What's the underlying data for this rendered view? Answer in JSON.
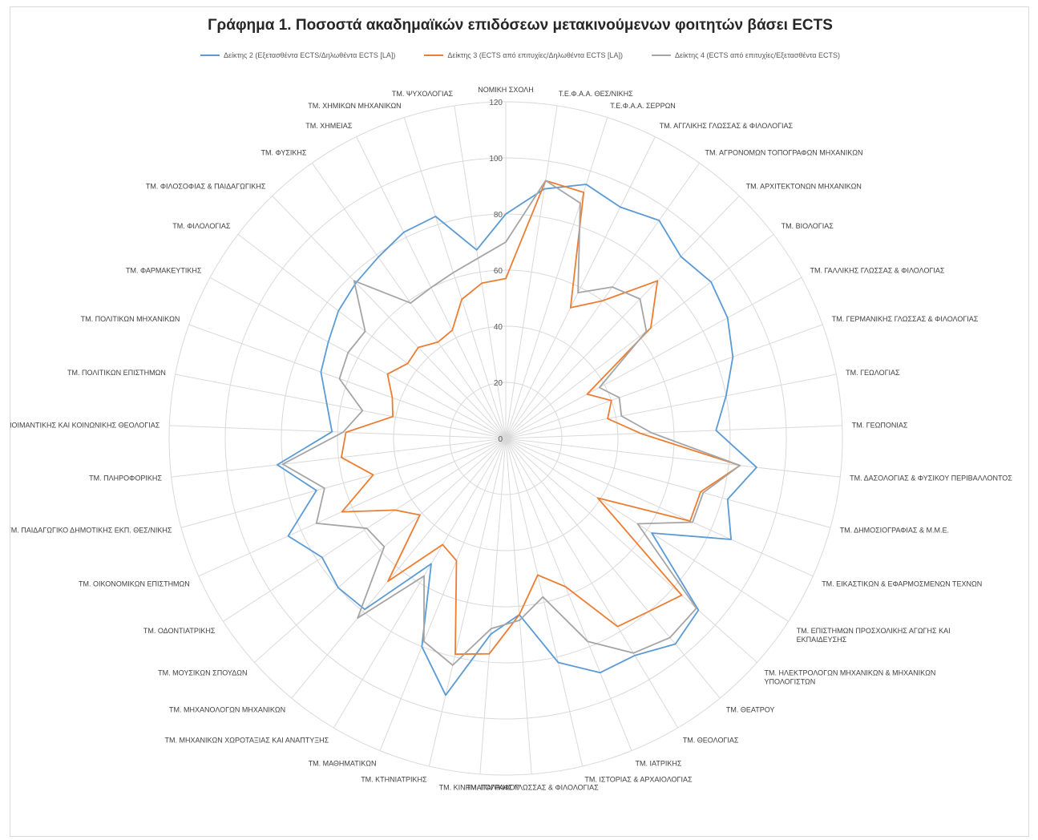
{
  "chart_data": {
    "type": "radar",
    "title": "Γράφημα 1. Ποσοστά ακαδημαϊκών επιδόσεων μετακινούμενων φοιτητών βάσει ECTS",
    "rmin": 0,
    "rmax": 120,
    "ticks": [
      0,
      20,
      40,
      60,
      80,
      100,
      120
    ],
    "tick_labels": [
      "0",
      "20",
      "40",
      "60",
      "80",
      "100",
      "120"
    ],
    "legend_position": "top",
    "grid": true,
    "categories": [
      [
        "ΝΟΜΙΚΗ ΣΧΟΛΗ"
      ],
      [
        "Τ.Ε.Φ.Α.Α. ΘΕΣ/ΝΙΚΗΣ"
      ],
      [
        "Τ.Ε.Φ.Α.Α. ΣΕΡΡΩΝ"
      ],
      [
        "ΤΜ. ΑΓΓΛΙΚΗΣ ΓΛΩΣΣΑΣ & ΦΙΛΟΛΟΓΙΑΣ"
      ],
      [
        "ΤΜ. ΑΓΡΟΝΟΜΩΝ ΤΟΠΟΓΡΑΦΩΝ ΜΗΧΑΝΙΚΩΝ"
      ],
      [
        "ΤΜ. ΑΡΧΙΤΕΚΤΟΝΩΝ ΜΗΧΑΝΙΚΩΝ"
      ],
      [
        "ΤΜ. ΒΙΟΛΟΓΙΑΣ"
      ],
      [
        "ΤΜ. ΓΑΛΛΙΚΗΣ ΓΛΩΣΣΑΣ & ΦΙΛΟΛΟΓΙΑΣ"
      ],
      [
        "ΤΜ. ΓΕΡΜΑΝΙΚΗΣ ΓΛΩΣΣΑΣ & ΦΙΛΟΛΟΓΙΑΣ"
      ],
      [
        "ΤΜ. ΓΕΩΛΟΓΙΑΣ"
      ],
      [
        "ΤΜ. ΓΕΩΠΟΝΙΑΣ"
      ],
      [
        "ΤΜ. ΔΑΣΟΛΟΓΙΑΣ & ΦΥΣΙΚΟΥ ΠΕΡΙΒΑΛΛΟΝΤΟΣ"
      ],
      [
        "ΤΜ. ΔΗΜΟΣΙΟΓΡΑΦΙΑΣ & Μ.Μ.Ε."
      ],
      [
        "ΤΜ. ΕΙΚΑΣΤΙΚΩΝ & ΕΦΑΡΜΟΣΜΕΝΩΝ ΤΕΧΝΩΝ"
      ],
      [
        "ΤΜ. ΕΠΙΣΤΗΜΩΝ ΠΡΟΣΧΟΛΙΚΗΣ ΑΓΩΓΗΣ ΚΑΙ",
        "ΕΚΠΑΙΔΕΥΣΗΣ"
      ],
      [
        "ΤΜ. ΗΛΕΚΤΡΟΛΟΓΩΝ ΜΗΧΑΝΙΚΩΝ & ΜΗΧΑΝΙΚΩΝ",
        "ΥΠΟΛΟΓΙΣΤΩΝ"
      ],
      [
        "ΤΜ. ΘΕΑΤΡΟΥ"
      ],
      [
        "ΤΜ. ΘΕΟΛΟΓΙΑΣ"
      ],
      [
        "ΤΜ. ΙΑΤΡΙΚΗΣ"
      ],
      [
        "ΤΜ. ΙΣΤΟΡΙΑΣ & ΑΡΧΑΙΟΛΟΓΙΑΣ"
      ],
      [
        "ΤΜ. ΙΤΑΛΙΚΗΣ ΓΛΩΣΣΑΣ & ΦΙΛΟΛΟΓΙΑΣ"
      ],
      [
        "ΤΜ. ΚΙΝΗΜΑΤΟΓΡΑΦΟΥ"
      ],
      [
        "ΤΜ. ΚΤΗΝΙΑΤΡΙΚΗΣ"
      ],
      [
        "ΤΜ. ΜΑΘΗΜΑΤΙΚΩΝ"
      ],
      [
        "ΤΜ. ΜΗΧΑΝΙΚΩΝ ΧΩΡΟΤΑΞΙΑΣ ΚΑΙ ΑΝΑΠΤΥΞΗΣ"
      ],
      [
        "ΤΜ. ΜΗΧΑΝΟΛΟΓΩΝ ΜΗΧΑΝΙΚΩΝ"
      ],
      [
        "ΤΜ. ΜΟΥΣΙΚΩΝ ΣΠΟΥΔΩΝ"
      ],
      [
        "ΤΜ. ΟΔΟΝΤΙΑΤΡΙΚΗΣ"
      ],
      [
        "ΤΜ. ΟΙΚΟΝΟΜΙΚΩΝ ΕΠΙΣΤΗΜΩΝ"
      ],
      [
        "ΤΜ. ΠΑΙΔΑΓΩΓΙΚΟ ΔΗΜΟΤΙΚΗΣ ΕΚΠ. ΘΕΣ/ΝΙΚΗΣ"
      ],
      [
        "ΤΜ. ΠΛΗΡΟΦΟΡΙΚΗΣ"
      ],
      [
        "ΤΜ. ΠΟΙΜΑΝΤΙΚΗΣ ΚΑΙ ΚΟΙΝΩΝΙΚΗΣ ΘΕΟΛΟΓΙΑΣ"
      ],
      [
        "ΤΜ. ΠΟΛΙΤΙΚΩΝ ΕΠΙΣΤΗΜΩΝ"
      ],
      [
        "ΤΜ. ΠΟΛΙΤΙΚΩΝ ΜΗΧΑΝΙΚΩΝ"
      ],
      [
        "ΤΜ. ΦΑΡΜΑΚΕΥΤΙΚΗΣ"
      ],
      [
        "ΤΜ. ΦΙΛΟΛΟΓΙΑΣ"
      ],
      [
        "ΤΜ. ΦΙΛΟΣΟΦΙΑΣ & ΠΑΙΔΑΓΩΓΙΚΗΣ"
      ],
      [
        "ΤΜ. ΦΥΣΙΚΗΣ"
      ],
      [
        "ΤΜ. ΧΗΜΕΙΑΣ"
      ],
      [
        "ΤΜ. ΧΗΜΙΚΩΝ ΜΗΧΑΝΙΚΩΝ"
      ],
      [
        "ΤΜ. ΨΥΧΟΛΟΓΙΑΣ"
      ]
    ],
    "series": [
      {
        "name": "Δείκτης 2 (Εξετασθέντα ECTS/Δηλωθέντα ECTS [LA])",
        "color": "#5b9bd5",
        "values": [
          80,
          90,
          95,
          92,
          95,
          90,
          92,
          90,
          86,
          80,
          75,
          90,
          82,
          88,
          62,
          92,
          95,
          90,
          90,
          82,
          63,
          70,
          94,
          80,
          52,
          79,
          80,
          78,
          85,
          70,
          82,
          62,
          65,
          70,
          72,
          75,
          77,
          79,
          82,
          83,
          68
        ]
      },
      {
        "name": "Δείκτης 3 (ECTS από επιτυχίες/Δηλωθέντα ECTS [LA])",
        "color": "#ed7d31",
        "values": [
          57,
          93,
          92,
          52,
          60,
          78,
          65,
          33,
          40,
          37,
          48,
          84,
          72,
          72,
          39,
          84,
          80,
          78,
          57,
          50,
          63,
          77,
          79,
          47,
          44,
          66,
          41,
          47,
          64,
          49,
          59,
          57,
          41,
          43,
          48,
          44,
          45,
          42,
          43,
          52,
          56
        ]
      },
      {
        "name": "Δείκτης 4 (ECTS από επιτυχίες/Εξετασθέντα ECTS)",
        "color": "#a5a5a5",
        "values": [
          70,
          93,
          88,
          58,
          66,
          69,
          63,
          38,
          43,
          42,
          52,
          84,
          73,
          73,
          56,
          91,
          92,
          89,
          78,
          58,
          65,
          68,
          83,
          78,
          57,
          83,
          58,
          59,
          74,
          67,
          80,
          58,
          52,
          63,
          64,
          63,
          78,
          59,
          60,
          62,
          65
        ]
      }
    ]
  }
}
